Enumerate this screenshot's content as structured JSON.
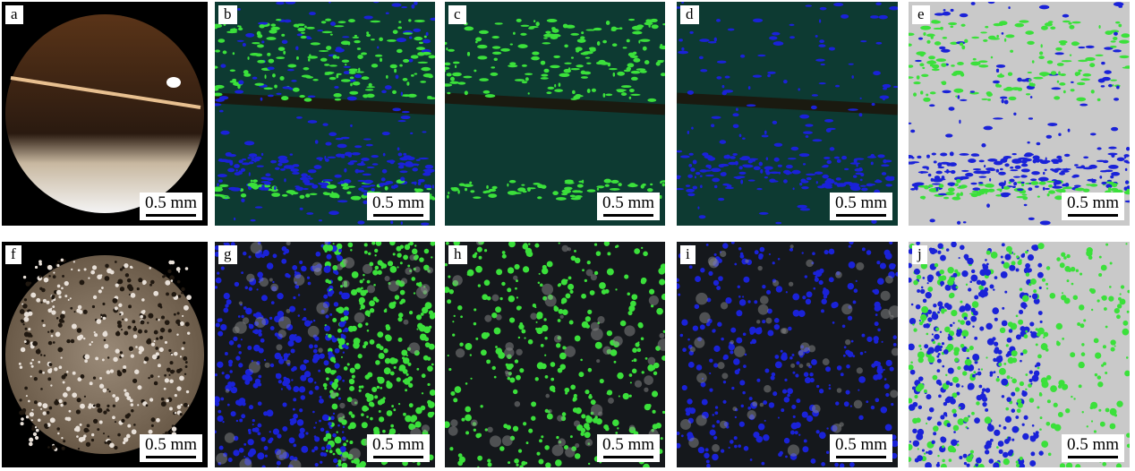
{
  "panels": [
    {
      "label": "a",
      "kind": "photo",
      "scale": "0.5 mm"
    },
    {
      "label": "b",
      "kind": "fluor-layered",
      "scale": "0.5 mm"
    },
    {
      "label": "c",
      "kind": "fluor-layered-green",
      "scale": "0.5 mm"
    },
    {
      "label": "d",
      "kind": "fluor-layered-blue",
      "scale": "0.5 mm"
    },
    {
      "label": "e",
      "kind": "segmented-layered",
      "scale": "0.5 mm"
    },
    {
      "label": "f",
      "kind": "photo-granular",
      "scale": "0.5 mm"
    },
    {
      "label": "g",
      "kind": "fluor-granular",
      "scale": "0.5 mm"
    },
    {
      "label": "h",
      "kind": "fluor-granular-green",
      "scale": "0.5 mm"
    },
    {
      "label": "i",
      "kind": "fluor-granular-blue",
      "scale": "0.5 mm"
    },
    {
      "label": "j",
      "kind": "segmented-granular",
      "scale": "0.5 mm"
    }
  ],
  "colors": {
    "green": "#3be03b",
    "blue": "#1a22d8",
    "background_segmented": "#c9c9c9",
    "fluor_background": "#0d3a32"
  }
}
